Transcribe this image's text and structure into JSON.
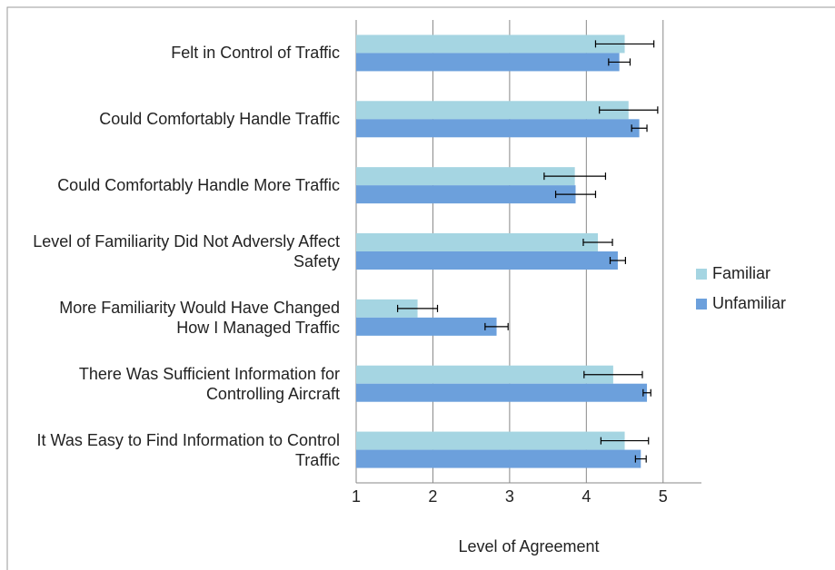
{
  "chart_data": {
    "type": "barh",
    "x_label": "Level of Agreement",
    "categories": [
      "Felt in Control of Traffic",
      "Could Comfortably Handle Traffic",
      "Could Comfortably Handle More Traffic",
      "Level of Familiarity Did Not Adversly Affect Safety",
      "More Familiarity Would Have Changed How I Managed Traffic",
      "There Was Sufficient Information for Controlling Aircraft",
      "It Was Easy to Find Information to Control Traffic"
    ],
    "series": [
      {
        "name": "Familiar",
        "color": "#a5d5e2",
        "values": [
          4.5,
          4.55,
          3.85,
          4.15,
          1.8,
          4.35,
          4.5
        ],
        "errors": [
          0.38,
          0.38,
          0.4,
          0.19,
          0.26,
          0.38,
          0.31
        ]
      },
      {
        "name": "Unfamiliar",
        "color": "#6ca0dc",
        "values": [
          4.43,
          4.69,
          3.86,
          4.41,
          2.83,
          4.79,
          4.71
        ],
        "errors": [
          0.14,
          0.1,
          0.26,
          0.1,
          0.15,
          0.05,
          0.07
        ]
      }
    ],
    "xlim": [
      1,
      5.5
    ],
    "xticks": [
      1,
      2,
      3,
      4,
      5
    ],
    "grid": true,
    "legend": "right"
  }
}
